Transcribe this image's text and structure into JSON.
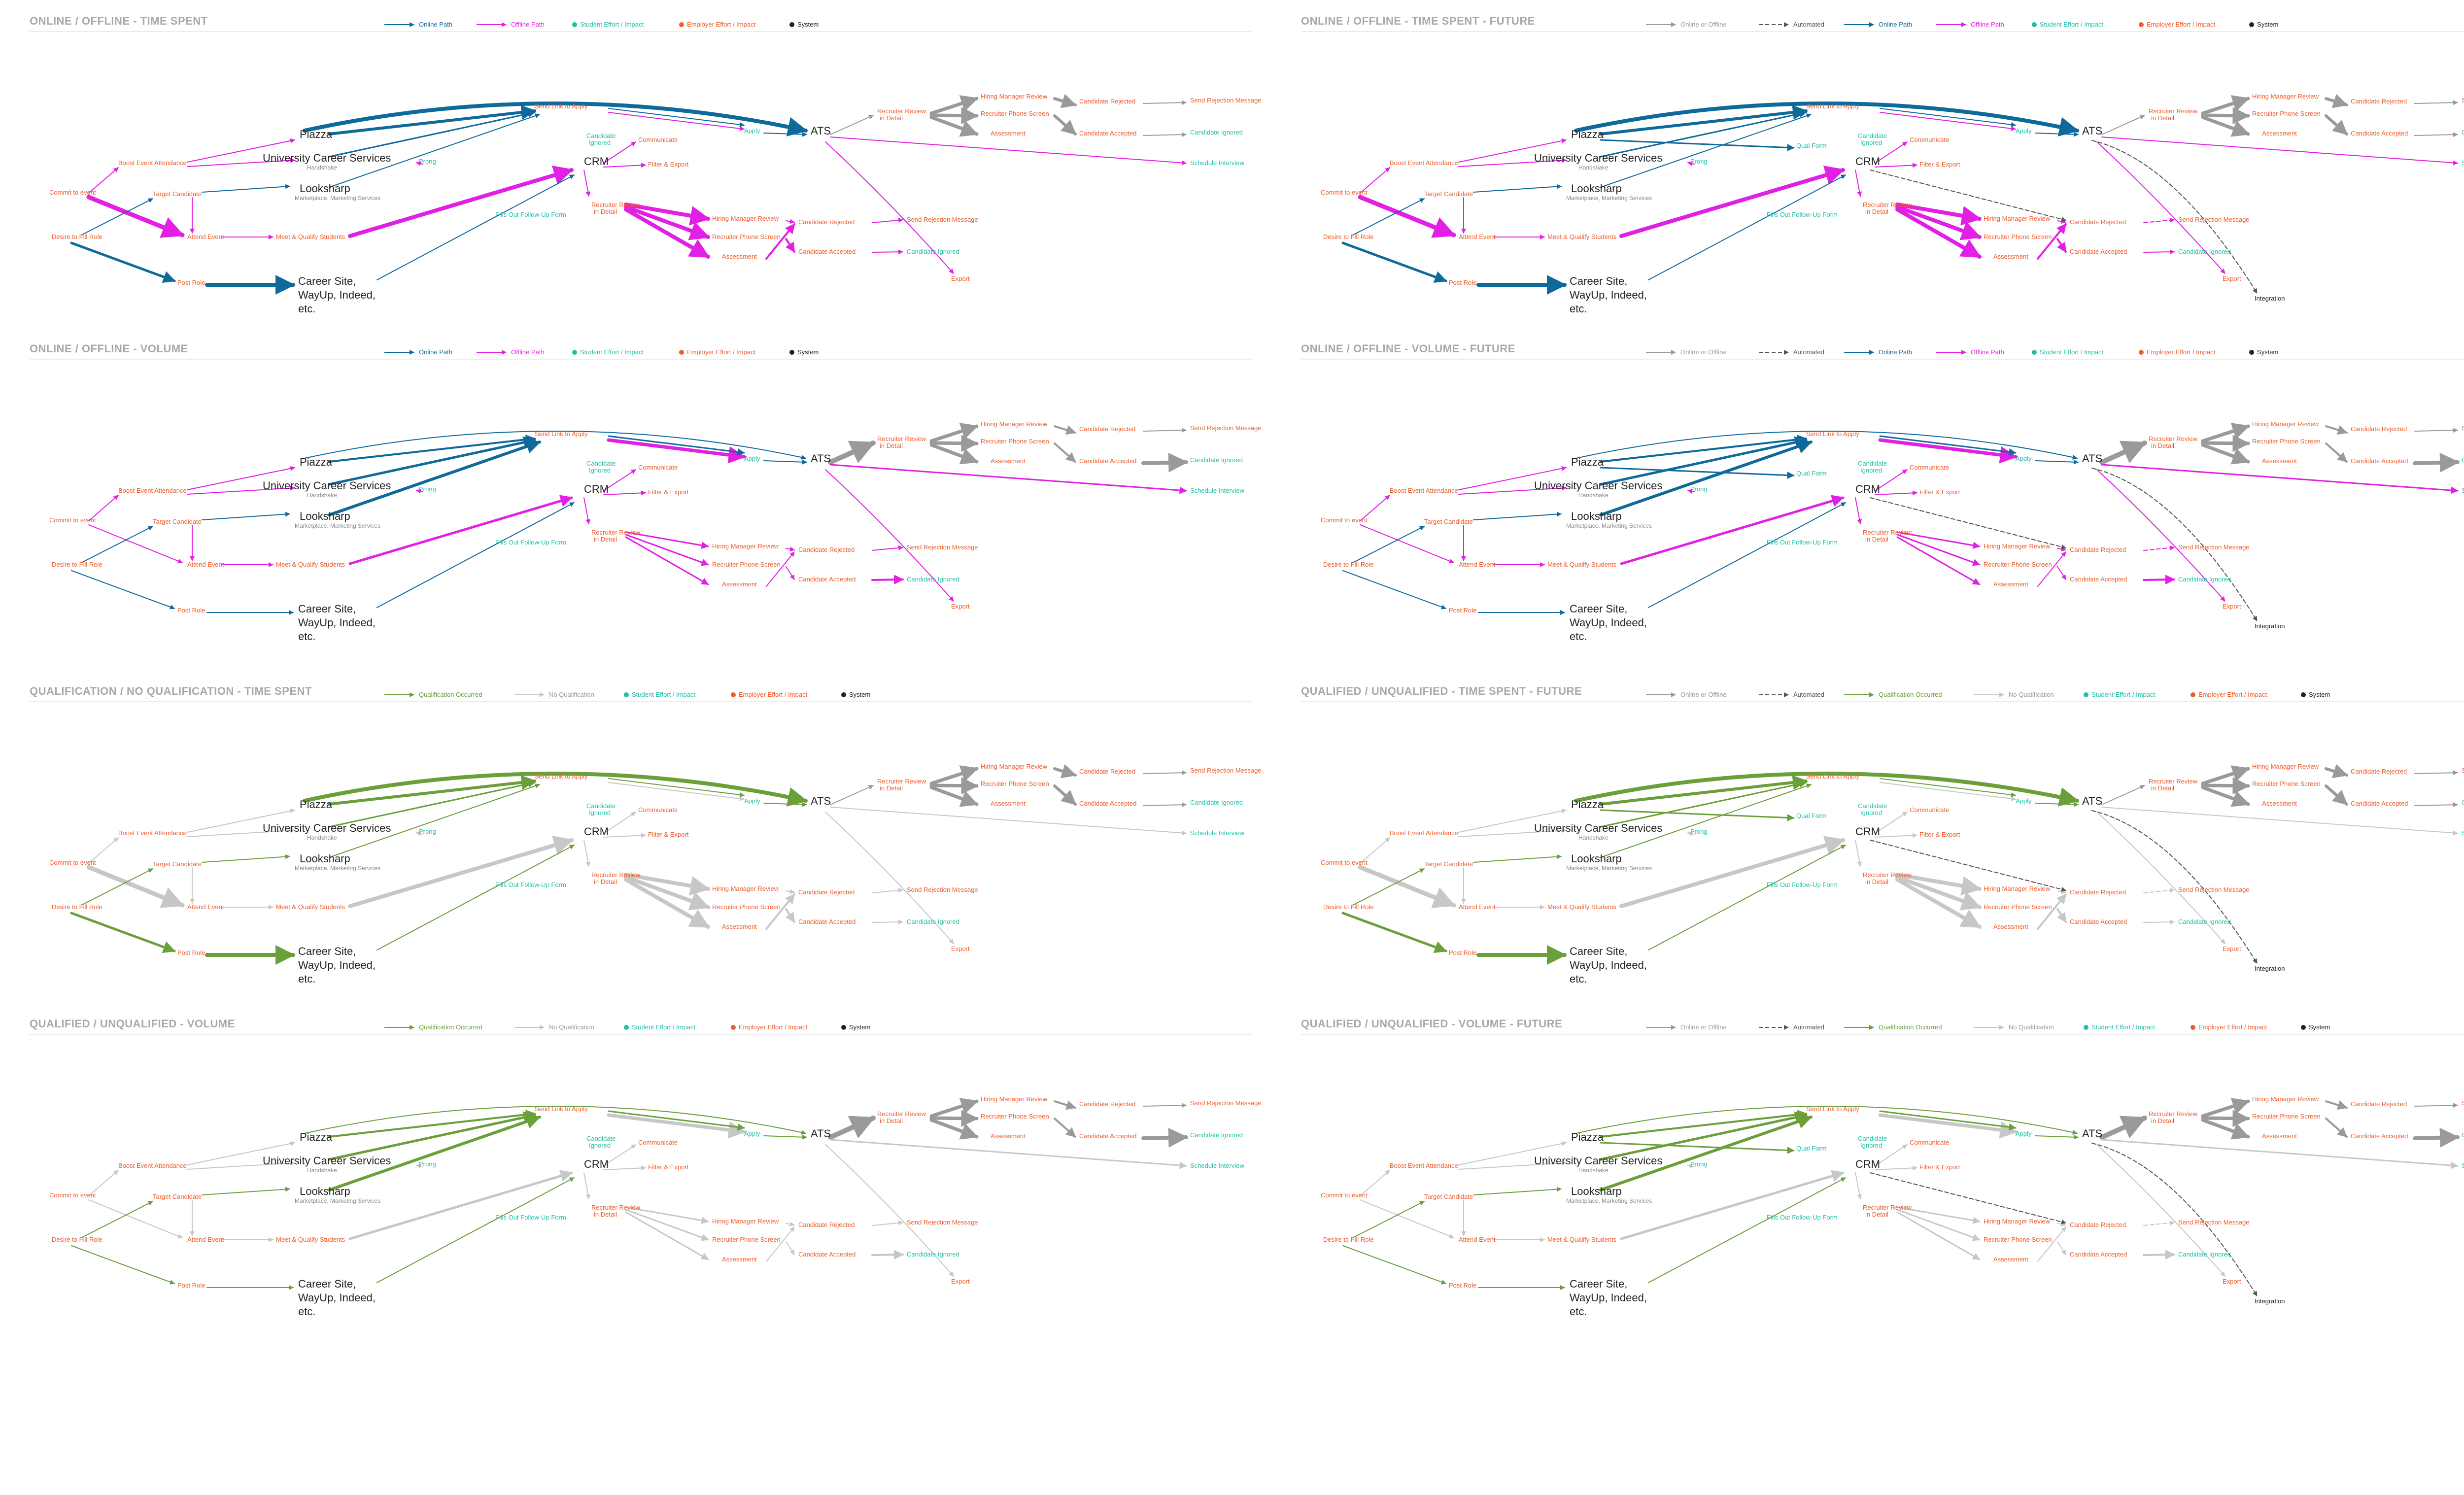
{
  "colors": {
    "online": "#0f6a9c",
    "offline": "#e21fe4",
    "qualified": "#6a9f3a",
    "unqualified": "#c7c7c7",
    "online_or_offline": "#9a9a9a",
    "automated": "#555555",
    "student": "#20bfa6",
    "employer": "#ef5b2b",
    "system": "#222222"
  },
  "legends": {
    "online_path": "Online Path",
    "offline_path": "Offline Path",
    "student": "Student Effort / Impact",
    "employer": "Employer Effort / Impact",
    "system": "System",
    "online_or_offline": "Online or Offline",
    "automated": "Automated",
    "qualification_occurred": "Qualification Occurred",
    "no_qualification": "No Qualification"
  },
  "nodes": {
    "piazza": "Piazza",
    "ucs": "University Career Services",
    "handshake": "Handshake",
    "looksharp": "Looksharp",
    "marketplace": "Marketplace, Marketing Services",
    "crm": "CRM",
    "ats": "ATS",
    "career_1": "Career Site,",
    "career_2": "WayUp, Indeed,",
    "career_3": "etc.",
    "boost": "Boost Event Attendance",
    "commit": "Commit to event",
    "target": "Target Candidate",
    "desire": "Desire to Fill Role",
    "attend": "Attend Event",
    "post": "Post Role",
    "meet": "Meet & Qualify Students",
    "prong": "Prong",
    "send_link": "Send Link to Apply",
    "cand_ign_1": "Candidate",
    "cand_ign_2": "Ignored",
    "communicate": "Communicate",
    "filter": "Filter & Export",
    "fills": "Fills Out Follow-Up Form",
    "rr_1": "Recruiter Review",
    "rr_2": "in Detail",
    "hmr": "Hiring Manager Review",
    "rps": "Recruiter Phone Screen",
    "assessment": "Assessment",
    "cand_rejected": "Candidate Rejected",
    "cand_accepted": "Candidate Accepted",
    "send_rejection": "Send Rejection Message",
    "cand_ignored": "Candidate Ignored",
    "schedule": "Schedule Interview",
    "export": "Export",
    "apply": "Apply",
    "qual_form": "Qual Form",
    "integration": "Integration"
  },
  "panels": [
    {
      "title": "ONLINE / OFFLINE - TIME SPENT",
      "scheme": "online",
      "future": false,
      "metric": "time",
      "legend": [
        "online_path",
        "offline_path",
        "student",
        "employer",
        "system"
      ]
    },
    {
      "title": "ONLINE / OFFLINE - TIME SPENT - FUTURE",
      "scheme": "online",
      "future": true,
      "metric": "time",
      "legend": [
        "online_or_offline",
        "automated",
        "online_path",
        "offline_path",
        "student",
        "employer",
        "system"
      ]
    },
    {
      "title": "ONLINE / OFFLINE - VOLUME",
      "scheme": "online",
      "future": false,
      "metric": "volume",
      "legend": [
        "online_path",
        "offline_path",
        "student",
        "employer",
        "system"
      ]
    },
    {
      "title": "ONLINE / OFFLINE - VOLUME - FUTURE",
      "scheme": "online",
      "future": true,
      "metric": "volume",
      "legend": [
        "online_or_offline",
        "automated",
        "online_path",
        "offline_path",
        "student",
        "employer",
        "system"
      ]
    },
    {
      "title": "QUALIFICATION / NO QUALIFICATION - TIME SPENT",
      "scheme": "qual",
      "future": false,
      "metric": "time",
      "legend": [
        "qualification_occurred",
        "no_qualification",
        "student",
        "employer",
        "system"
      ]
    },
    {
      "title": "QUALIFIED / UNQUALIFIED - TIME SPENT - FUTURE",
      "scheme": "qual",
      "future": true,
      "metric": "time",
      "legend": [
        "online_or_offline",
        "automated",
        "qualification_occurred",
        "no_qualification",
        "student",
        "employer",
        "system"
      ]
    },
    {
      "title": "QUALIFIED / UNQUALIFIED - VOLUME",
      "scheme": "qual",
      "future": false,
      "metric": "volume",
      "legend": [
        "qualification_occurred",
        "no_qualification",
        "student",
        "employer",
        "system"
      ]
    },
    {
      "title": "QUALIFIED / UNQUALIFIED - VOLUME - FUTURE",
      "scheme": "qual",
      "future": true,
      "metric": "volume",
      "legend": [
        "online_or_offline",
        "automated",
        "qualification_occurred",
        "no_qualification",
        "student",
        "employer",
        "system"
      ]
    }
  ]
}
